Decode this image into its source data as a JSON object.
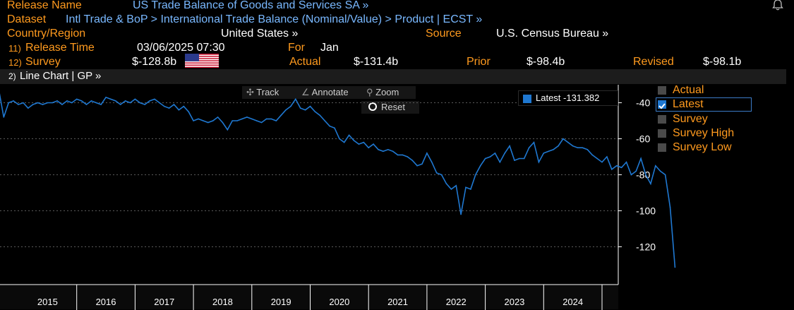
{
  "header": {
    "release_name_label": "Release Name",
    "release_name_value": "US Trade Balance of Goods and Services SA »",
    "dataset_label": "Dataset",
    "dataset_value": "Intl Trade & BoP > International Trade Balance (Nominal/Value) > Product | ECST »",
    "country_label": "Country/Region",
    "country_value": "United States »",
    "source_label": "Source",
    "source_value": "U.S. Census Bureau »",
    "release_time_num": "11)",
    "release_time_label": "Release Time",
    "release_time_value": "03/06/2025 07:30",
    "for_label": "For",
    "for_value": "Jan",
    "survey_num": "12)",
    "survey_label": "Survey",
    "survey_value": "$-128.8b",
    "actual_label": "Actual",
    "actual_value": "$-131.4b",
    "prior_label": "Prior",
    "prior_value": "$-98.4b",
    "revised_label": "Revised",
    "revised_value": "$-98.1b"
  },
  "chart_bar": {
    "num": "2)",
    "label": "Line Chart | GP »"
  },
  "toolbar": {
    "track": "Track",
    "annotate": "Annotate",
    "zoom": "Zoom",
    "reset": "Reset"
  },
  "legend": {
    "items": [
      "Actual",
      "Latest",
      "Survey",
      "Survey High",
      "Survey Low"
    ],
    "latest_tag": "Latest -131.382"
  },
  "colors": {
    "line": "#1f78d1",
    "label": "#ff9a1e",
    "link": "#79b8ff",
    "grid": "#5a5a5a"
  },
  "chart_data": {
    "type": "line",
    "title": "",
    "xlabel": "",
    "ylabel": "",
    "ylim": [
      -141,
      -30
    ],
    "yticks": [
      -40,
      -60,
      -80,
      -100,
      -120
    ],
    "year_labels": [
      "2015",
      "2016",
      "2017",
      "2018",
      "2019",
      "2020",
      "2021",
      "2022",
      "2023",
      "2024"
    ],
    "x_start": "2014-07",
    "series": [
      {
        "name": "Latest",
        "values": [
          -38,
          -35,
          -33,
          -48,
          -40,
          -39,
          -41,
          -40,
          -43,
          -41,
          -40,
          -41,
          -40,
          -40,
          -39,
          -41,
          -39,
          -40,
          -38,
          -39,
          -41,
          -39,
          -40,
          -41,
          -37,
          -38,
          -39,
          -41,
          -39,
          -40,
          -38,
          -40,
          -41,
          -39,
          -38,
          -40,
          -42,
          -43,
          -41,
          -44,
          -42,
          -45,
          -50,
          -49,
          -50,
          -51,
          -50,
          -48,
          -51,
          -55,
          -50,
          -50,
          -49,
          -48,
          -49,
          -50,
          -51,
          -49,
          -49,
          -50,
          -47,
          -44,
          -42,
          -38,
          -43,
          -44,
          -42,
          -45,
          -47,
          -50,
          -53,
          -54,
          -60,
          -62,
          -58,
          -61,
          -63,
          -62,
          -65,
          -63,
          -66,
          -67,
          -66,
          -67,
          -69,
          -69,
          -70,
          -72,
          -75,
          -74,
          -68,
          -73,
          -79,
          -80,
          -85,
          -88,
          -86,
          -102,
          -87,
          -88,
          -80,
          -75,
          -71,
          -70,
          -68,
          -73,
          -68,
          -64,
          -72,
          -71,
          -71,
          -65,
          -62,
          -73,
          -68,
          -67,
          -66,
          -64,
          -60,
          -62,
          -64,
          -65,
          -65,
          -66,
          -69,
          -71,
          -73,
          -70,
          -77,
          -75,
          -76,
          -73,
          -80,
          -78,
          -71,
          -80,
          -85,
          -75,
          -78,
          -80,
          -98,
          -131.4
        ]
      }
    ],
    "latest_value": -131.382,
    "grid": true,
    "legend_position": "right"
  }
}
